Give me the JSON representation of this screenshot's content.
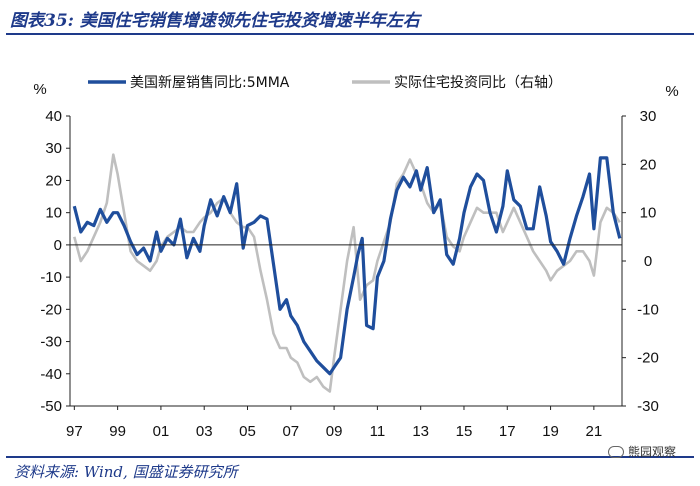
{
  "header": {
    "title": "图表35: 美国住宅销售增速领先住宅投资增速半年左右"
  },
  "footer": {
    "source": "资料来源: Wind, 国盛证券研究所",
    "watermark": "熊园观察"
  },
  "chart_data": {
    "type": "line",
    "x_tick_labels": [
      "97",
      "99",
      "01",
      "03",
      "05",
      "07",
      "09",
      "11",
      "13",
      "15",
      "17",
      "19",
      "21"
    ],
    "left_axis": {
      "unit_label": "%",
      "ylim": [
        -50,
        40
      ],
      "ticks": [
        40,
        30,
        20,
        10,
        0,
        -10,
        -20,
        -30,
        -40,
        -50
      ]
    },
    "right_axis": {
      "unit_label": "%",
      "ylim": [
        -30,
        30
      ],
      "ticks": [
        30,
        20,
        10,
        0,
        -10,
        -20,
        -30
      ]
    },
    "colors": {
      "series1": "#1f4e9c",
      "series2": "#bfbfbf"
    },
    "series": [
      {
        "name": "美国新屋销售同比:5MMA",
        "axis": "left",
        "x": [
          1997.0,
          1997.3,
          1997.6,
          1997.9,
          1998.2,
          1998.5,
          1998.8,
          1999.0,
          1999.3,
          1999.6,
          1999.9,
          2000.2,
          2000.5,
          2000.8,
          2001.0,
          2001.3,
          2001.6,
          2001.9,
          2002.2,
          2002.5,
          2002.8,
          2003.0,
          2003.3,
          2003.6,
          2003.9,
          2004.2,
          2004.5,
          2004.8,
          2005.0,
          2005.3,
          2005.6,
          2005.9,
          2006.2,
          2006.5,
          2006.8,
          2007.0,
          2007.3,
          2007.6,
          2007.9,
          2008.2,
          2008.5,
          2008.8,
          2009.0,
          2009.3,
          2009.6,
          2009.9,
          2010.1,
          2010.3,
          2010.5,
          2010.8,
          2011.0,
          2011.3,
          2011.6,
          2011.9,
          2012.2,
          2012.5,
          2012.8,
          2013.0,
          2013.3,
          2013.6,
          2013.9,
          2014.2,
          2014.5,
          2014.8,
          2015.0,
          2015.3,
          2015.6,
          2015.9,
          2016.2,
          2016.5,
          2016.8,
          2017.0,
          2017.3,
          2017.6,
          2017.9,
          2018.2,
          2018.5,
          2018.8,
          2019.0,
          2019.3,
          2019.6,
          2019.9,
          2020.2,
          2020.5,
          2020.8,
          2021.0,
          2021.3,
          2021.6,
          2021.9,
          2022.2
        ],
        "values": [
          12,
          4,
          7,
          6,
          11,
          7,
          10,
          10,
          6,
          1,
          -3,
          -1,
          -5,
          4,
          -2,
          2,
          0,
          8,
          -4,
          2,
          -2,
          6,
          14,
          9,
          15,
          10,
          19,
          -1,
          6,
          7,
          9,
          8,
          -6,
          -20,
          -17,
          -22,
          -25,
          -30,
          -33,
          -36,
          -38,
          -40,
          -38,
          -35,
          -20,
          -10,
          -3,
          2,
          -25,
          -26,
          -10,
          -5,
          8,
          17,
          21,
          18,
          23,
          17,
          24,
          10,
          14,
          -3,
          -6,
          2,
          10,
          18,
          22,
          20,
          10,
          4,
          12,
          23,
          14,
          12,
          5,
          5,
          18,
          9,
          1,
          -2,
          -6,
          2,
          9,
          15,
          22,
          5,
          27,
          27,
          10,
          2
        ]
      },
      {
        "name": "实际住宅投资同比（右轴）",
        "axis": "right",
        "x": [
          1997.0,
          1997.3,
          1997.6,
          1997.9,
          1998.2,
          1998.5,
          1998.8,
          1999.0,
          1999.3,
          1999.6,
          1999.9,
          2000.2,
          2000.5,
          2000.8,
          2001.0,
          2001.3,
          2001.6,
          2001.9,
          2002.2,
          2002.5,
          2002.8,
          2003.0,
          2003.3,
          2003.6,
          2003.9,
          2004.2,
          2004.5,
          2004.8,
          2005.0,
          2005.3,
          2005.6,
          2005.9,
          2006.2,
          2006.5,
          2006.8,
          2007.0,
          2007.3,
          2007.6,
          2007.9,
          2008.2,
          2008.5,
          2008.8,
          2009.0,
          2009.3,
          2009.6,
          2009.9,
          2010.2,
          2010.5,
          2010.8,
          2011.0,
          2011.3,
          2011.6,
          2011.9,
          2012.2,
          2012.5,
          2012.8,
          2013.0,
          2013.3,
          2013.6,
          2013.9,
          2014.2,
          2014.5,
          2014.8,
          2015.0,
          2015.3,
          2015.6,
          2015.9,
          2016.2,
          2016.5,
          2016.8,
          2017.0,
          2017.3,
          2017.6,
          2017.9,
          2018.2,
          2018.5,
          2018.8,
          2019.0,
          2019.3,
          2019.6,
          2019.9,
          2020.2,
          2020.5,
          2020.8,
          2021.0,
          2021.3,
          2021.6,
          2021.9,
          2022.2
        ],
        "values": [
          5,
          0,
          2,
          5,
          8,
          12,
          22,
          18,
          10,
          2,
          0,
          -1,
          -2,
          0,
          3,
          5,
          6,
          7,
          6,
          6,
          8,
          9,
          10,
          12,
          13,
          10,
          8,
          7,
          7,
          5,
          -2,
          -8,
          -15,
          -18,
          -18,
          -20,
          -21,
          -24,
          -25,
          -24,
          -26,
          -27,
          -20,
          -10,
          0,
          7,
          -8,
          -5,
          -4,
          0,
          4,
          8,
          16,
          18,
          21,
          18,
          16,
          12,
          10,
          12,
          5,
          3,
          2,
          5,
          8,
          11,
          10,
          10,
          10,
          6,
          8,
          11,
          8,
          5,
          2,
          0,
          -2,
          -4,
          -2,
          -1,
          0,
          2,
          2,
          0,
          -3,
          8,
          11,
          10,
          8
        ]
      }
    ]
  }
}
